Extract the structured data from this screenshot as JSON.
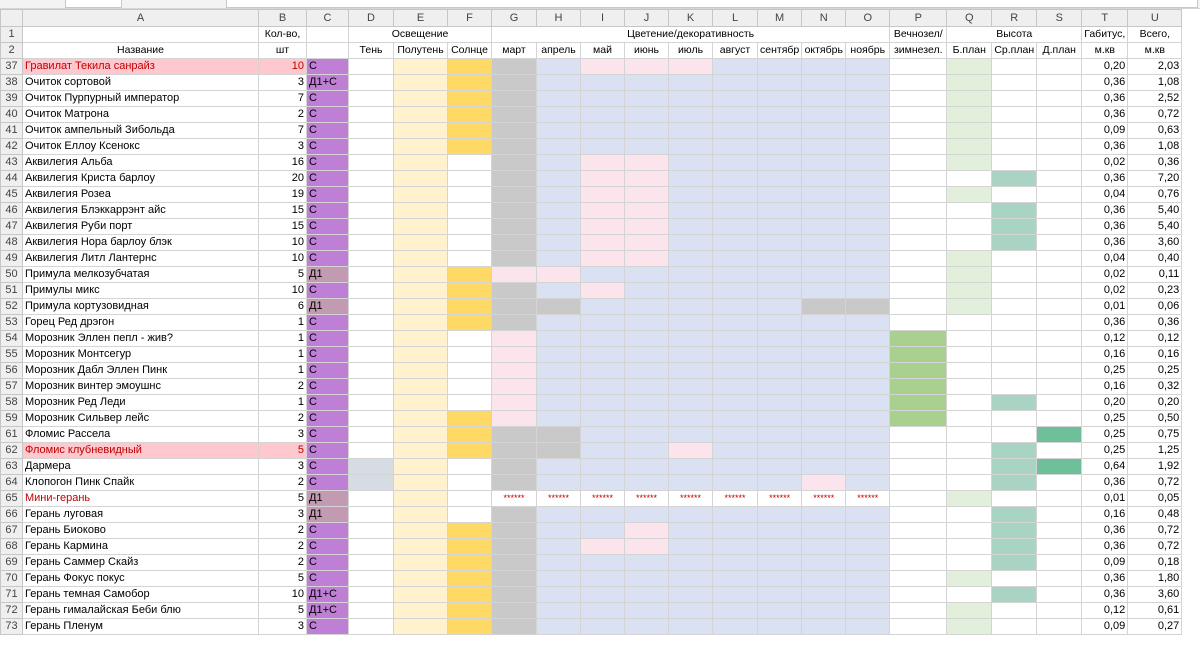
{
  "column_letters": [
    "A",
    "B",
    "C",
    "D",
    "E",
    "F",
    "G",
    "H",
    "I",
    "J",
    "K",
    "L",
    "M",
    "N",
    "O",
    "P",
    "Q",
    "R",
    "S",
    "T",
    "U"
  ],
  "header_row1": {
    "row_number": "1",
    "qty": "Кол-во,",
    "lighting": "Освещение",
    "bloom": "Цветение/декоративность",
    "evergreen": "Вечнозел/",
    "height": "Высота",
    "habit": "Габитус,",
    "total": "Всего,"
  },
  "header_row2": {
    "row_number": "2",
    "name": "Название",
    "qty": "шт",
    "shade": "Тень",
    "partial": "Полутень",
    "sun": "Солнце",
    "months": [
      "март",
      "апрель",
      "май",
      "июнь",
      "июль",
      "август",
      "сентябр",
      "октябрь",
      "ноябрь"
    ],
    "evergreen": "зимнезел.",
    "height_front": "Б.план",
    "height_mid": "Ср.план",
    "height_back": "Д.план",
    "habit_unit": "м.кв",
    "total_unit": "м.кв"
  },
  "rows": [
    {
      "n": "37",
      "name": "Гравилат Текила санрайз",
      "qty": "10",
      "c": "С",
      "hl": true,
      "light": "y",
      "m": "GBPPPBBBB",
      "p": "",
      "q": "g",
      "r": "",
      "s": "",
      "t": "0,20",
      "u": "2,03"
    },
    {
      "n": "38",
      "name": "Очиток сортовой",
      "qty": "3",
      "c": "Д1+С",
      "light": "y",
      "m": "GBBBBBBBB",
      "p": "",
      "q": "g",
      "r": "",
      "s": "",
      "t": "0,36",
      "u": "1,08"
    },
    {
      "n": "39",
      "name": "Очиток Пурпурный император",
      "qty": "7",
      "c": "С",
      "light": "y",
      "m": "GBBBBBBBB",
      "p": "",
      "q": "g",
      "r": "",
      "s": "",
      "t": "0,36",
      "u": "2,52"
    },
    {
      "n": "40",
      "name": "Очиток Матрона",
      "qty": "2",
      "c": "С",
      "light": "y",
      "m": "GBBBBBBBB",
      "p": "",
      "q": "g",
      "r": "",
      "s": "",
      "t": "0,36",
      "u": "0,72"
    },
    {
      "n": "41",
      "name": "Очиток ампельный Зибольда",
      "qty": "7",
      "c": "С",
      "light": "y",
      "m": "GBBBBBBBB",
      "p": "",
      "q": "g",
      "r": "",
      "s": "",
      "t": "0,09",
      "u": "0,63"
    },
    {
      "n": "42",
      "name": "Очиток Еллоу Ксенокс",
      "qty": "3",
      "c": "С",
      "light": "y",
      "m": "GBBBBBBBB",
      "p": "",
      "q": "g",
      "r": "",
      "s": "",
      "t": "0,36",
      "u": "1,08"
    },
    {
      "n": "43",
      "name": "Аквилегия Альба",
      "qty": "16",
      "c": "С",
      "light": "ly",
      "m": "GBPPBBBBB",
      "p": "",
      "q": "g",
      "r": "",
      "s": "",
      "t": "0,02",
      "u": "0,36"
    },
    {
      "n": "44",
      "name": "Аквилегия Криста барлоу",
      "qty": "20",
      "c": "С",
      "light": "ly",
      "m": "GBPPBBBBB",
      "p": "",
      "q": "",
      "r": "t",
      "s": "",
      "t": "0,36",
      "u": "7,20"
    },
    {
      "n": "45",
      "name": "Аквилегия Розеа",
      "qty": "19",
      "c": "С",
      "light": "ly",
      "m": "GBPPBBBBB",
      "p": "",
      "q": "g",
      "r": "",
      "s": "",
      "t": "0,04",
      "u": "0,76"
    },
    {
      "n": "46",
      "name": "Аквилегия Блэккаррэнт айс",
      "qty": "15",
      "c": "С",
      "light": "ly",
      "m": "GBPPBBBBB",
      "p": "",
      "q": "",
      "r": "t",
      "s": "",
      "t": "0,36",
      "u": "5,40"
    },
    {
      "n": "47",
      "name": "Аквилегия Руби порт",
      "qty": "15",
      "c": "С",
      "light": "ly",
      "m": "GBPPBBBBB",
      "p": "",
      "q": "",
      "r": "t",
      "s": "",
      "t": "0,36",
      "u": "5,40"
    },
    {
      "n": "48",
      "name": "Аквилегия Нора барлоу блэк",
      "qty": "10",
      "c": "С",
      "light": "ly",
      "m": "GBPPBBBBB",
      "p": "",
      "q": "",
      "r": "t",
      "s": "",
      "t": "0,36",
      "u": "3,60"
    },
    {
      "n": "49",
      "name": "Аквилегия Литл Лантернс",
      "qty": "10",
      "c": "С",
      "light": "ly",
      "m": "GBPPBBBBB",
      "p": "",
      "q": "g",
      "r": "",
      "s": "",
      "t": "0,04",
      "u": "0,40"
    },
    {
      "n": "50",
      "name": "Примула мелкозубчатая",
      "qty": "5",
      "c": "Д1",
      "light": "y",
      "m": "PPBBBBBBB",
      "p": "",
      "q": "g",
      "r": "",
      "s": "",
      "t": "0,02",
      "u": "0,11",
      "muted": true
    },
    {
      "n": "51",
      "name": "Примулы микс",
      "qty": "10",
      "c": "С",
      "light": "y",
      "m": "GBPBBBBBB",
      "p": "",
      "q": "g",
      "r": "",
      "s": "",
      "t": "0,02",
      "u": "0,23"
    },
    {
      "n": "52",
      "name": "Примула кортузовидная",
      "qty": "6",
      "c": "Д1",
      "light": "y",
      "m": "GGBBBBBGG",
      "p": "",
      "q": "g",
      "r": "",
      "s": "",
      "t": "0,01",
      "u": "0,06",
      "muted": true
    },
    {
      "n": "53",
      "name": "Горец Ред дрэгон",
      "qty": "1",
      "c": "С",
      "light": "y",
      "m": "GBBBBBBBB",
      "p": "",
      "q": "",
      "r": "",
      "s": "",
      "t": "0,36",
      "u": "0,36"
    },
    {
      "n": "54",
      "name": "Морозник Эллен пепл - жив?",
      "qty": "1",
      "c": "С",
      "light": "ly",
      "m": "PBBBBBBBB",
      "p": "g",
      "q": "",
      "r": "",
      "s": "",
      "t": "0,12",
      "u": "0,12"
    },
    {
      "n": "55",
      "name": "Морозник Монтсегур",
      "qty": "1",
      "c": "С",
      "light": "ly",
      "m": "PBBBBBBBB",
      "p": "g",
      "q": "",
      "r": "",
      "s": "",
      "t": "0,16",
      "u": "0,16"
    },
    {
      "n": "56",
      "name": "Морозник Дабл Эллен Пинк",
      "qty": "1",
      "c": "С",
      "light": "ly",
      "m": "PBBBBBBBB",
      "p": "g",
      "q": "",
      "r": "",
      "s": "",
      "t": "0,25",
      "u": "0,25"
    },
    {
      "n": "57",
      "name": "Морозник винтер эмоушнс",
      "qty": "2",
      "c": "С",
      "light": "ly",
      "m": "PBBBBBBBB",
      "p": "g",
      "q": "",
      "r": "",
      "s": "",
      "t": "0,16",
      "u": "0,32"
    },
    {
      "n": "58",
      "name": "Морозник Ред Леди",
      "qty": "1",
      "c": "С",
      "light": "ly",
      "m": "PBBBBBBBB",
      "p": "g",
      "q": "",
      "r": "t",
      "s": "",
      "t": "0,20",
      "u": "0,20"
    },
    {
      "n": "59",
      "name": "Морозник Сильвер лейс",
      "qty": "2",
      "c": "С",
      "light": "y",
      "m": "PBBBBBBBB",
      "p": "g",
      "q": "",
      "r": "",
      "s": "",
      "t": "0,25",
      "u": "0,50"
    },
    {
      "n": "61",
      "name": "Фломис Рассела",
      "qty": "3",
      "c": "С",
      "light": "y",
      "m": "GGBBBBBBB",
      "p": "",
      "q": "",
      "r": "",
      "s": "d",
      "t": "0,25",
      "u": "0,75"
    },
    {
      "n": "62",
      "name": "Фломис клубневидный",
      "qty": "5",
      "c": "С",
      "hl": true,
      "light": "y",
      "m": "GGBBPBBBB",
      "p": "",
      "q": "",
      "r": "t",
      "s": "",
      "t": "0,25",
      "u": "1,25"
    },
    {
      "n": "63",
      "name": "Дармера",
      "qty": "3",
      "c": "С",
      "light": "steel",
      "m": "GBBBBBBBB",
      "p": "",
      "q": "",
      "r": "t",
      "s": "d",
      "t": "0,64",
      "u": "1,92"
    },
    {
      "n": "64",
      "name": "Клопогон Пинк Спайк",
      "qty": "2",
      "c": "С",
      "light": "steel",
      "m": "GBBBBBBPB",
      "p": "",
      "q": "",
      "r": "t",
      "s": "",
      "t": "0,36",
      "u": "0,72"
    },
    {
      "n": "65",
      "name": "Мини-герань",
      "qty": "5",
      "c": "Д1",
      "hlText": true,
      "light": "ly",
      "m": "*********",
      "p": "",
      "q": "g",
      "r": "",
      "s": "",
      "t": "0,01",
      "u": "0,05",
      "muted": true
    },
    {
      "n": "66",
      "name": "Герань луговая",
      "qty": "3",
      "c": "Д1",
      "light": "ly",
      "m": "GBBBBBBBB",
      "p": "",
      "q": "",
      "r": "t",
      "s": "",
      "t": "0,16",
      "u": "0,48",
      "muted": true
    },
    {
      "n": "67",
      "name": "Герань Биоково",
      "qty": "2",
      "c": "С",
      "light": "y",
      "m": "GBBPBBBBB",
      "p": "",
      "q": "",
      "r": "t",
      "s": "",
      "t": "0,36",
      "u": "0,72"
    },
    {
      "n": "68",
      "name": "Герань Кармина",
      "qty": "2",
      "c": "С",
      "light": "y",
      "m": "GBPPBBBBB",
      "p": "",
      "q": "",
      "r": "t",
      "s": "",
      "t": "0,36",
      "u": "0,72"
    },
    {
      "n": "69",
      "name": "Герань Саммер Скайз",
      "qty": "2",
      "c": "С",
      "light": "y",
      "m": "GBBBBBBBB",
      "p": "",
      "q": "",
      "r": "t",
      "s": "",
      "t": "0,09",
      "u": "0,18"
    },
    {
      "n": "70",
      "name": "Герань Фокус покус",
      "qty": "5",
      "c": "С",
      "light": "y",
      "m": "GBBBBBBBB",
      "p": "",
      "q": "g",
      "r": "",
      "s": "",
      "t": "0,36",
      "u": "1,80"
    },
    {
      "n": "71",
      "name": "Герань темная Самобор",
      "qty": "10",
      "c": "Д1+С",
      "light": "y",
      "m": "GBBBBBBBB",
      "p": "",
      "q": "",
      "r": "t",
      "s": "",
      "t": "0,36",
      "u": "3,60"
    },
    {
      "n": "72",
      "name": "Герань гималайская Беби блю",
      "qty": "5",
      "c": "Д1+С",
      "light": "y",
      "m": "GBBBBBBBB",
      "p": "",
      "q": "g",
      "r": "",
      "s": "",
      "t": "0,12",
      "u": "0,61"
    },
    {
      "n": "73",
      "name": "Герань Пленум",
      "qty": "3",
      "c": "С",
      "light": "y",
      "m": "GBBBBBBBB",
      "p": "",
      "q": "g",
      "r": "",
      "s": "",
      "t": "0,09",
      "u": "0,27"
    }
  ],
  "stars_text": "******"
}
